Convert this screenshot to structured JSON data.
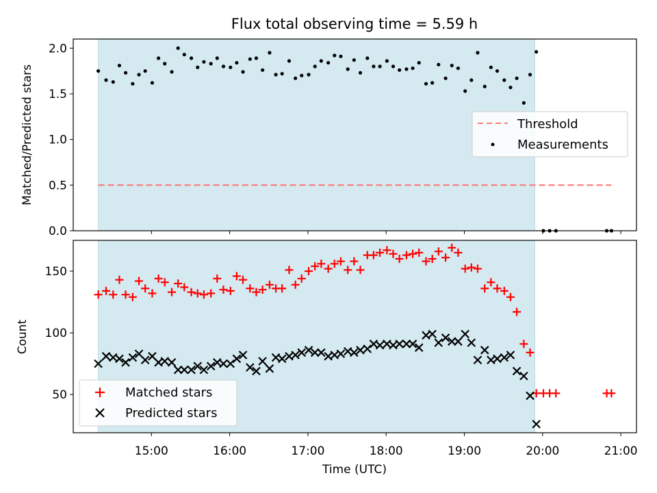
{
  "title": "Flux total observing time = 5.59 h",
  "x_tick_labels": [
    "15:00",
    "16:00",
    "17:00",
    "18:00",
    "19:00",
    "20:00",
    "21:00"
  ],
  "xlabel": "Time (UTC)",
  "colors": {
    "shade": "#d4eaf0",
    "threshold": "#ff7777",
    "matched": "#ff0000",
    "predicted": "#000000",
    "measurement": "#000000"
  },
  "chart_data": [
    {
      "type": "scatter",
      "title": "Flux total observing time = 5.59 h",
      "ylabel": "Matched/Predicted stars",
      "xlabel": "",
      "x_unit": "hours UTC",
      "xlim": [
        14.0,
        21.2
      ],
      "ylim": [
        0.0,
        2.1
      ],
      "y_ticks": [
        0.0,
        0.5,
        1.0,
        1.5,
        2.0
      ],
      "y_tick_labels": [
        "0.0",
        "0.5",
        "1.0",
        "1.5",
        "2.0"
      ],
      "shaded_interval": [
        14.32,
        19.9
      ],
      "legend": {
        "position": "center-right",
        "entries": [
          "Threshold",
          "Measurements"
        ]
      },
      "threshold": {
        "name": "Threshold",
        "y": 0.5,
        "x": [
          14.32,
          20.88
        ]
      },
      "series": [
        {
          "name": "Measurements",
          "marker": "dot",
          "x": [
            14.32,
            14.42,
            14.51,
            14.59,
            14.67,
            14.76,
            14.84,
            14.92,
            15.01,
            15.09,
            15.17,
            15.26,
            15.34,
            15.42,
            15.51,
            15.59,
            15.67,
            15.76,
            15.84,
            15.92,
            16.01,
            16.09,
            16.17,
            16.26,
            16.34,
            16.42,
            16.51,
            16.59,
            16.67,
            16.76,
            16.84,
            16.92,
            17.01,
            17.09,
            17.17,
            17.26,
            17.34,
            17.42,
            17.51,
            17.59,
            17.67,
            17.76,
            17.84,
            17.92,
            18.01,
            18.09,
            18.17,
            18.26,
            18.34,
            18.42,
            18.51,
            18.59,
            18.67,
            18.76,
            18.84,
            18.92,
            19.01,
            19.09,
            19.17,
            19.26,
            19.34,
            19.42,
            19.51,
            19.59,
            19.67,
            19.76,
            19.84,
            19.92,
            20.01,
            20.09,
            20.17,
            20.82,
            20.88
          ],
          "y": [
            1.75,
            1.65,
            1.63,
            1.81,
            1.73,
            1.61,
            1.71,
            1.75,
            1.62,
            1.89,
            1.83,
            1.74,
            2.0,
            1.93,
            1.89,
            1.79,
            1.85,
            1.83,
            1.89,
            1.8,
            1.79,
            1.84,
            1.74,
            1.88,
            1.89,
            1.76,
            1.95,
            1.71,
            1.72,
            1.86,
            1.67,
            1.7,
            1.71,
            1.8,
            1.86,
            1.84,
            1.92,
            1.91,
            1.77,
            1.87,
            1.73,
            1.89,
            1.8,
            1.8,
            1.86,
            1.8,
            1.76,
            1.77,
            1.78,
            1.84,
            1.61,
            1.62,
            1.82,
            1.67,
            1.81,
            1.78,
            1.53,
            1.65,
            1.95,
            1.58,
            1.79,
            1.75,
            1.65,
            1.57,
            1.67,
            1.4,
            1.71,
            1.96,
            0.0,
            0.0,
            0.0,
            0.0,
            0.0
          ]
        }
      ]
    },
    {
      "type": "scatter",
      "ylabel": "Count",
      "xlabel": "Time (UTC)",
      "x_unit": "hours UTC",
      "xlim": [
        14.0,
        21.2
      ],
      "ylim": [
        19,
        175
      ],
      "y_ticks": [
        50,
        100,
        150
      ],
      "y_tick_labels": [
        "50",
        "100",
        "150"
      ],
      "shaded_interval": [
        14.32,
        19.9
      ],
      "legend": {
        "position": "lower-left",
        "entries": [
          "Matched stars",
          "Predicted stars"
        ]
      },
      "series": [
        {
          "name": "Matched stars",
          "marker": "plus",
          "x": [
            14.32,
            14.42,
            14.51,
            14.59,
            14.67,
            14.76,
            14.84,
            14.92,
            15.01,
            15.09,
            15.17,
            15.26,
            15.34,
            15.42,
            15.51,
            15.59,
            15.67,
            15.76,
            15.84,
            15.92,
            16.01,
            16.09,
            16.17,
            16.26,
            16.34,
            16.42,
            16.51,
            16.59,
            16.67,
            16.76,
            16.84,
            16.92,
            17.01,
            17.09,
            17.17,
            17.26,
            17.34,
            17.42,
            17.51,
            17.59,
            17.67,
            17.76,
            17.84,
            17.92,
            18.01,
            18.09,
            18.17,
            18.26,
            18.34,
            18.42,
            18.51,
            18.59,
            18.67,
            18.76,
            18.84,
            18.92,
            19.01,
            19.09,
            19.17,
            19.26,
            19.34,
            19.42,
            19.51,
            19.59,
            19.67,
            19.76,
            19.84,
            19.92,
            20.01,
            20.09,
            20.17,
            20.82,
            20.88
          ],
          "y": [
            131,
            134,
            131,
            143,
            131,
            129,
            142,
            136,
            132,
            144,
            141,
            133,
            140,
            137,
            133,
            132,
            131,
            132,
            144,
            135,
            134,
            146,
            143,
            136,
            133,
            135,
            139,
            136,
            136,
            151,
            139,
            144,
            150,
            154,
            156,
            152,
            156,
            158,
            151,
            158,
            151,
            163,
            163,
            165,
            167,
            164,
            160,
            163,
            164,
            165,
            158,
            160,
            166,
            161,
            169,
            165,
            152,
            153,
            152,
            136,
            141,
            136,
            134,
            129,
            117,
            91,
            84,
            51,
            51,
            51,
            51,
            51,
            51
          ]
        },
        {
          "name": "Predicted stars",
          "marker": "x",
          "x": [
            14.32,
            14.42,
            14.51,
            14.59,
            14.67,
            14.76,
            14.84,
            14.92,
            15.01,
            15.09,
            15.17,
            15.26,
            15.34,
            15.42,
            15.51,
            15.59,
            15.67,
            15.76,
            15.84,
            15.92,
            16.01,
            16.09,
            16.17,
            16.26,
            16.34,
            16.42,
            16.51,
            16.59,
            16.67,
            16.76,
            16.84,
            16.92,
            17.01,
            17.09,
            17.17,
            17.26,
            17.34,
            17.42,
            17.51,
            17.59,
            17.67,
            17.76,
            17.84,
            17.92,
            18.01,
            18.09,
            18.17,
            18.26,
            18.34,
            18.42,
            18.51,
            18.59,
            18.67,
            18.76,
            18.84,
            18.92,
            19.01,
            19.09,
            19.17,
            19.26,
            19.34,
            19.42,
            19.51,
            19.59,
            19.67,
            19.76,
            19.84,
            19.92
          ],
          "y": [
            75,
            81,
            80,
            79,
            76,
            80,
            83,
            78,
            81,
            76,
            77,
            76,
            70,
            70,
            70,
            73,
            70,
            73,
            76,
            75,
            75,
            79,
            82,
            72,
            69,
            77,
            71,
            80,
            79,
            81,
            82,
            84,
            86,
            84,
            84,
            81,
            82,
            83,
            85,
            84,
            86,
            87,
            91,
            90,
            91,
            90,
            91,
            91,
            91,
            88,
            98,
            99,
            92,
            96,
            93,
            93,
            99,
            92,
            78,
            86,
            78,
            79,
            80,
            82,
            69,
            65,
            49,
            26
          ]
        }
      ]
    }
  ]
}
